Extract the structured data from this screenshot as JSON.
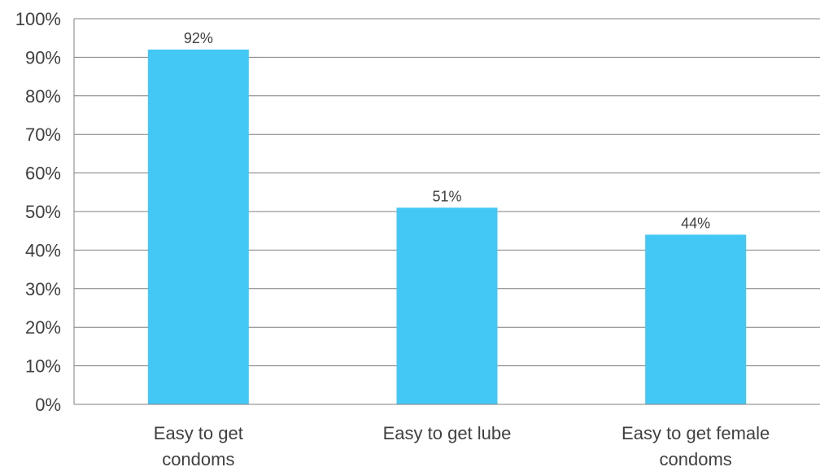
{
  "chart_data": {
    "type": "bar",
    "categories": [
      "Easy to get condoms",
      "Easy to get lube",
      "Easy to get female condoms"
    ],
    "category_lines": [
      [
        "Easy to get",
        "condoms"
      ],
      [
        "Easy to get lube"
      ],
      [
        "Easy to get female",
        "condoms"
      ]
    ],
    "values": [
      92,
      51,
      44
    ],
    "data_labels": [
      "92%",
      "51%",
      "44%"
    ],
    "y_ticks": [
      "0%",
      "10%",
      "20%",
      "30%",
      "40%",
      "50%",
      "60%",
      "70%",
      "80%",
      "90%",
      "100%"
    ],
    "ylim": [
      0,
      100
    ],
    "grid": true,
    "bar_color": "#43C8F5",
    "grid_color": "#7f7f7f",
    "text_color": "#404040"
  }
}
